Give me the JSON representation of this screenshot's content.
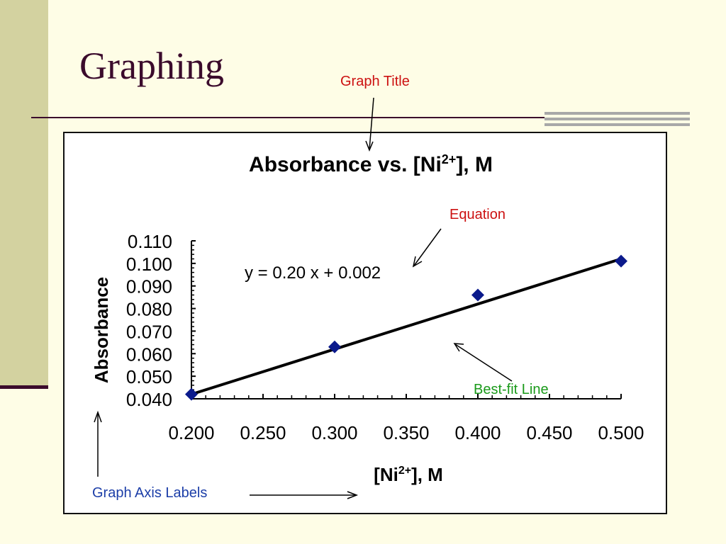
{
  "slide": {
    "title": "Graphing"
  },
  "annotations": {
    "graph_title": "Graph Title",
    "equation": "Equation",
    "best_fit": "Best-fit Line",
    "axis_labels": "Graph Axis Labels"
  },
  "chart_data": {
    "type": "scatter",
    "title": "Absorbance vs. [Ni",
    "title_sup": "2+",
    "title_rest": "], M",
    "xlabel": "[Ni",
    "xlabel_sup": "2+",
    "xlabel_rest": "], M",
    "ylabel": "Absorbance",
    "xlim": [
      0.2,
      0.5
    ],
    "ylim": [
      0.04,
      0.11
    ],
    "x_ticks": [
      "0.200",
      "0.250",
      "0.300",
      "0.350",
      "0.400",
      "0.450",
      "0.500"
    ],
    "y_ticks": [
      "0.040",
      "0.050",
      "0.060",
      "0.070",
      "0.080",
      "0.090",
      "0.100",
      "0.110"
    ],
    "grid": false,
    "series": [
      {
        "x": [
          0.2,
          0.3,
          0.4,
          0.5
        ],
        "y": [
          0.042,
          0.063,
          0.086,
          0.101
        ]
      }
    ],
    "trendline": {
      "slope": 0.2,
      "intercept": 0.002,
      "equation": "y = 0.20 x + 0.002"
    },
    "colors": {
      "marker": "#0b1a8c",
      "line": "#000000"
    }
  }
}
